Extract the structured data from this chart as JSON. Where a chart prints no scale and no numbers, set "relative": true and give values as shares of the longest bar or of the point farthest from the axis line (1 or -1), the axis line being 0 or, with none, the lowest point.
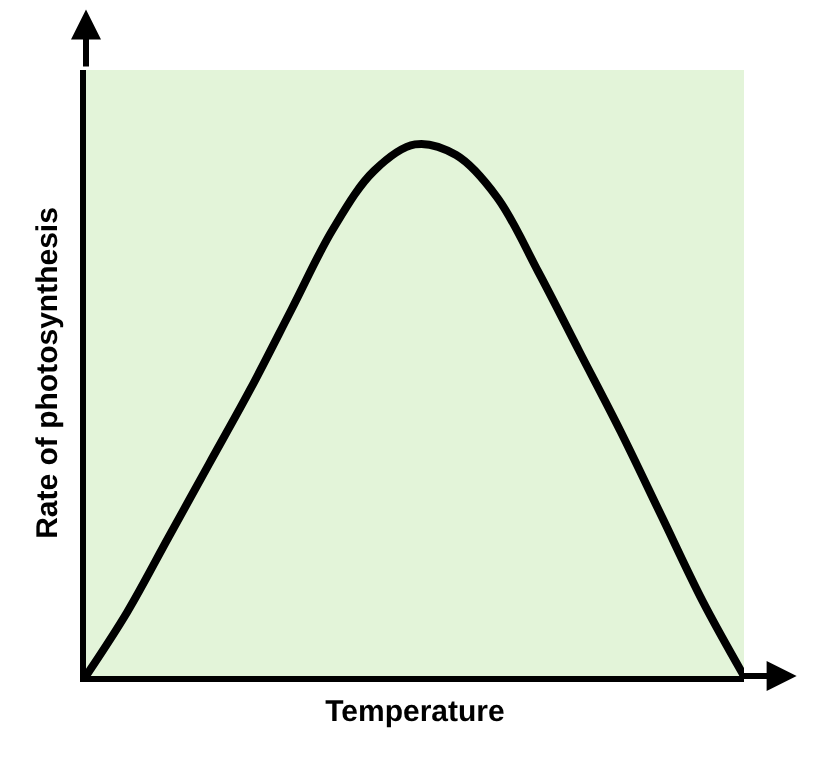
{
  "chart_data": {
    "type": "line",
    "relative": true,
    "xlabel": "Temperature",
    "ylabel": "Rate of photosynthesis",
    "color": "#000000",
    "categories": [
      null,
      null,
      null,
      null,
      null,
      null,
      null,
      null,
      null,
      null,
      null,
      null,
      null,
      null,
      null,
      null,
      null
    ],
    "values": [
      0,
      0.12,
      0.26,
      0.4,
      0.54,
      0.69,
      0.84,
      0.95,
      1,
      0.98,
      0.9,
      0.76,
      0.61,
      0.46,
      0.3,
      0.14,
      0
    ]
  }
}
